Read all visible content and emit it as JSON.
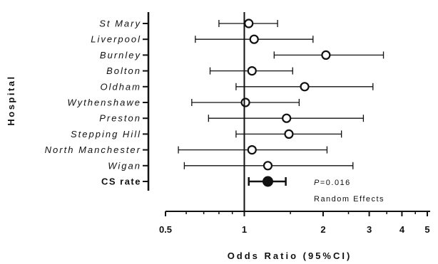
{
  "chart_data": {
    "type": "forest",
    "xscale": "log",
    "xlim": [
      0.5,
      5
    ],
    "xticks": [
      0.5,
      1,
      2,
      3,
      4,
      5
    ],
    "xtick_labels": [
      "0.5",
      "1",
      "2",
      "3",
      "4",
      "5"
    ],
    "xlabel": "Odds Ratio (95%CI)",
    "ylabel": "Hospital",
    "reference_line": 1,
    "rows": [
      {
        "label": "St Mary",
        "or": 1.04,
        "lo": 0.8,
        "hi": 1.34,
        "summary": false
      },
      {
        "label": "Liverpool",
        "or": 1.09,
        "lo": 0.65,
        "hi": 1.83,
        "summary": false
      },
      {
        "label": "Burnley",
        "or": 2.05,
        "lo": 1.3,
        "hi": 3.4,
        "summary": false
      },
      {
        "label": "Bolton",
        "or": 1.07,
        "lo": 0.74,
        "hi": 1.53,
        "summary": false
      },
      {
        "label": "Oldham",
        "or": 1.7,
        "lo": 0.93,
        "hi": 3.1,
        "summary": false
      },
      {
        "label": "Wythenshawe",
        "or": 1.01,
        "lo": 0.63,
        "hi": 1.62,
        "summary": false
      },
      {
        "label": "Preston",
        "or": 1.45,
        "lo": 0.73,
        "hi": 2.85,
        "summary": false
      },
      {
        "label": "Stepping Hill",
        "or": 1.48,
        "lo": 0.93,
        "hi": 2.35,
        "summary": false
      },
      {
        "label": "North Manchester",
        "or": 1.07,
        "lo": 0.56,
        "hi": 2.07,
        "summary": false
      },
      {
        "label": "Wigan",
        "or": 1.23,
        "lo": 0.59,
        "hi": 2.6,
        "summary": false
      },
      {
        "label": "CS rate",
        "or": 1.23,
        "lo": 1.04,
        "hi": 1.44,
        "summary": true
      }
    ],
    "annotation": {
      "p_prefix": "P",
      "p_value": "=0.016",
      "method": "Random Effects"
    }
  }
}
